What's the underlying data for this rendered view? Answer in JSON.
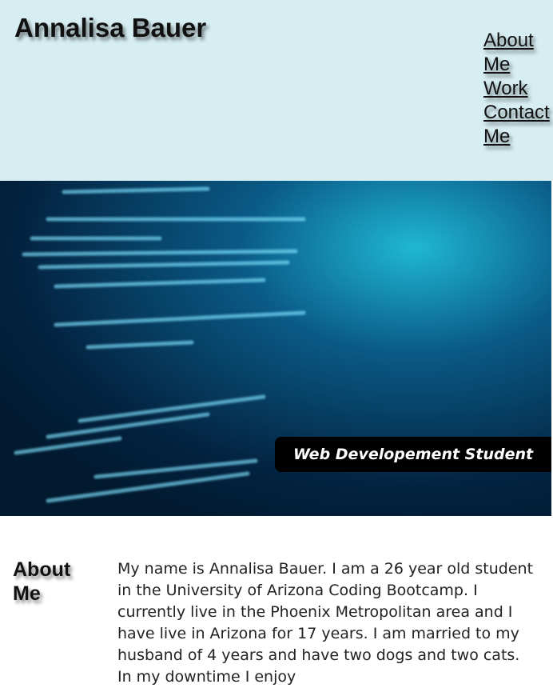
{
  "header": {
    "title": "Annalisa Bauer",
    "nav": [
      "About Me",
      "Work",
      "Contact Me"
    ]
  },
  "hero": {
    "caption": "Web Developement Student"
  },
  "about": {
    "heading": "About Me",
    "text": "My name is Annalisa Bauer. I am a 26 year old student in the University of Arizona Coding Bootcamp. I currently live in the Phoenix Metropolitan area and I have live in Arizona for 17 years. I am married to my husband of 4 years and have two dogs and two cats. In my downtime I enjoy"
  }
}
